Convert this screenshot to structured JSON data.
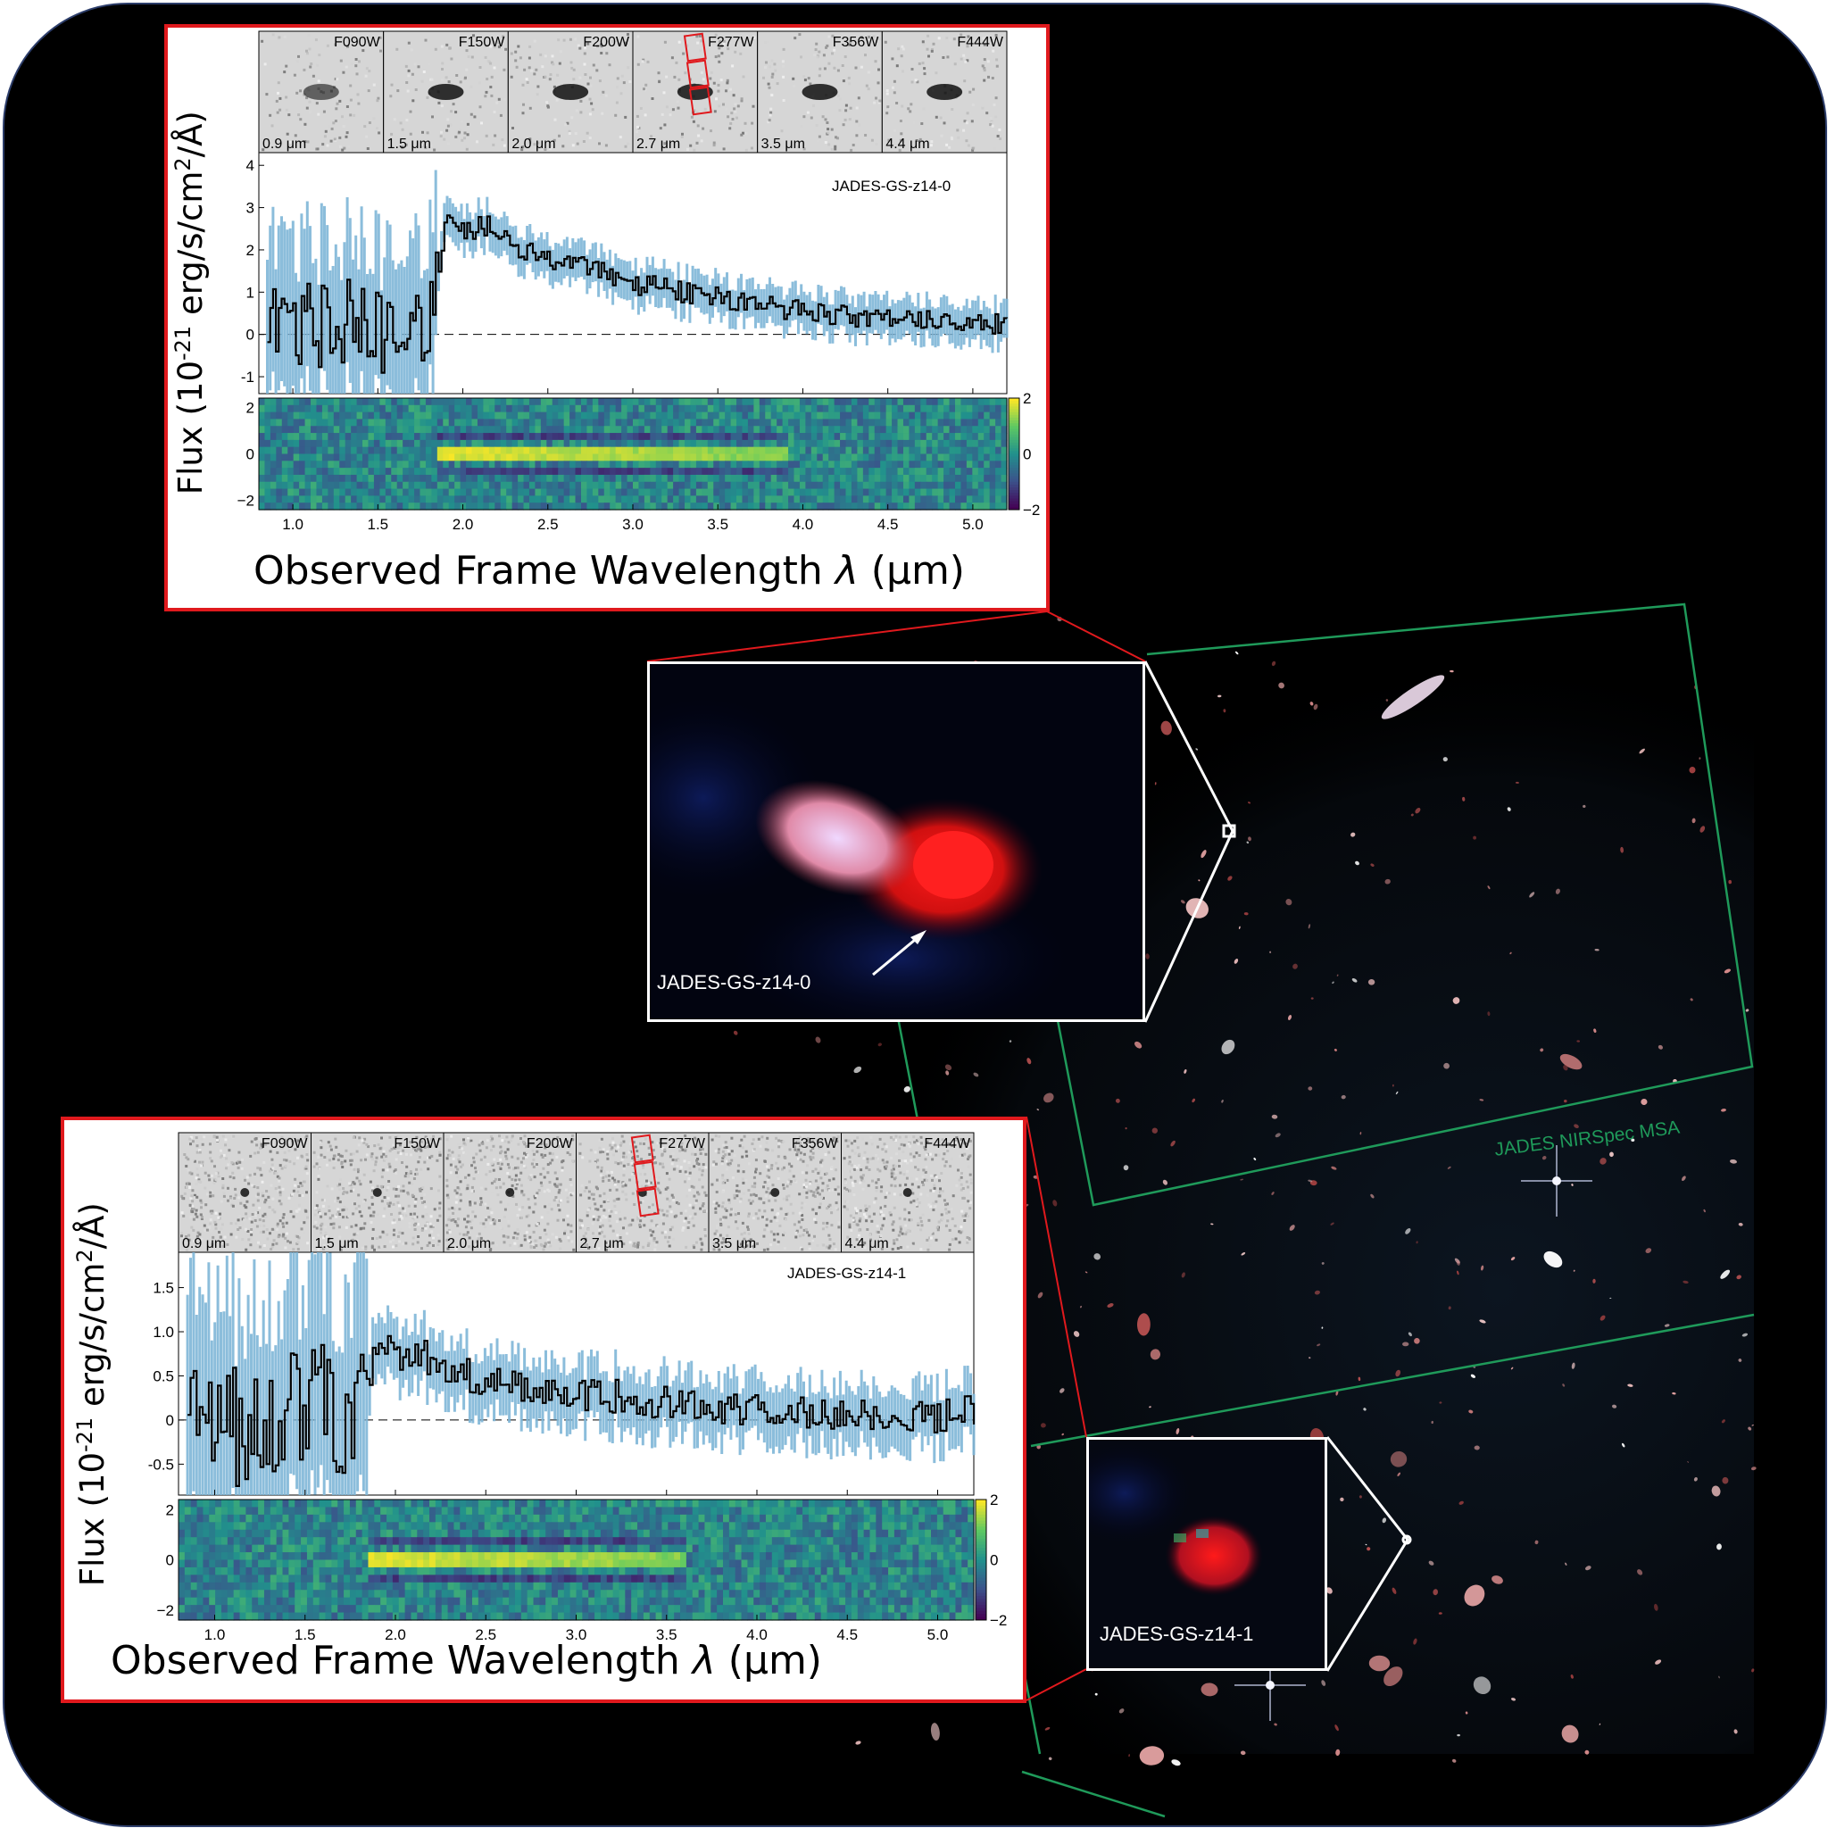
{
  "colors": {
    "frame_border": "#2d3e6b",
    "panel_border": "#e0191d",
    "flux_line": "#000000",
    "flux_error": "#7fb6d8",
    "msa_outline": "#1f9a5a",
    "background": "#000000"
  },
  "survey_label": "JADES NIRSpec MSA",
  "insets": [
    {
      "label": "JADES-GS-z14-0"
    },
    {
      "label": "JADES-GS-z14-1"
    }
  ],
  "panels": [
    {
      "object": "JADES-GS-z14-0",
      "ylabel": "Flux (10-21 erg/s/cm2/Å)",
      "ylabel_pre": "Flux (10",
      "ylabel_exp": "-21",
      "ylabel_mid": " erg/s/cm",
      "ylabel_exp2": "2",
      "ylabel_post": "/Å)",
      "xlabel": "Observed Frame Wavelength λ (μm)",
      "xlabel_pre": "Observed Frame Wavelength ",
      "xlabel_sym": "λ",
      "xlabel_post": " (μm)",
      "thumbnails": [
        {
          "filter": "F090W",
          "wavelength": "0.9 μm"
        },
        {
          "filter": "F150W",
          "wavelength": "1.5 μm"
        },
        {
          "filter": "F200W",
          "wavelength": "2.0 μm"
        },
        {
          "filter": "F277W",
          "wavelength": "2.7 μm"
        },
        {
          "filter": "F356W",
          "wavelength": "3.5 μm"
        },
        {
          "filter": "F444W",
          "wavelength": "4.4 μm"
        }
      ]
    },
    {
      "object": "JADES-GS-z14-1",
      "ylabel": "Flux (10-21 erg/s/cm2/Å)",
      "ylabel_pre": "Flux (10",
      "ylabel_exp": "-21",
      "ylabel_mid": " erg/s/cm",
      "ylabel_exp2": "2",
      "ylabel_post": "/Å)",
      "xlabel": "Observed Frame Wavelength λ (μm)",
      "xlabel_pre": "Observed Frame Wavelength ",
      "xlabel_sym": "λ",
      "xlabel_post": " (μm)",
      "thumbnails": [
        {
          "filter": "F090W",
          "wavelength": "0.9 μm"
        },
        {
          "filter": "F150W",
          "wavelength": "1.5 μm"
        },
        {
          "filter": "F200W",
          "wavelength": "2.0 μm"
        },
        {
          "filter": "F277W",
          "wavelength": "2.7 μm"
        },
        {
          "filter": "F356W",
          "wavelength": "3.5 μm"
        },
        {
          "filter": "F444W",
          "wavelength": "4.4 μm"
        }
      ]
    }
  ],
  "chart_data": [
    {
      "type": "line",
      "title": "JADES-GS-z14-0",
      "xlabel": "Observed Frame Wavelength λ (μm)",
      "ylabel": "Flux (10-21 erg/s/cm2/Å)",
      "xlim": [
        0.8,
        5.2
      ],
      "ylim": [
        -1.4,
        4.3
      ],
      "xticks": [
        "1.0",
        "1.5",
        "2.0",
        "2.5",
        "3.0",
        "3.5",
        "4.0",
        "4.5",
        "5.0"
      ],
      "yticks": [
        "-1",
        "0",
        "1",
        "2",
        "3",
        "4"
      ],
      "x": [
        0.85,
        1.0,
        1.2,
        1.4,
        1.6,
        1.75,
        1.82,
        1.9,
        2.0,
        2.15,
        2.3,
        2.5,
        2.7,
        3.0,
        3.3,
        3.6,
        4.0,
        4.5,
        5.0,
        5.2
      ],
      "series": [
        {
          "values": [
            0.0,
            0.3,
            0.1,
            0.4,
            -0.4,
            -0.1,
            0.7,
            2.7,
            2.4,
            2.6,
            2.1,
            1.8,
            1.6,
            1.2,
            1.0,
            0.8,
            0.55,
            0.35,
            0.3,
            0.2
          ]
        }
      ],
      "zero_line": "dashed",
      "spectrum_2d": {
        "type": "heatmap",
        "ylim": [
          -2.4,
          2.4
        ],
        "yticks": [
          "-2",
          "0",
          "2"
        ],
        "colorbar_ticks": [
          "2",
          "0",
          "-2"
        ],
        "trace_x_range": [
          1.85,
          3.9
        ]
      }
    },
    {
      "type": "line",
      "title": "JADES-GS-z14-1",
      "xlabel": "Observed Frame Wavelength λ (μm)",
      "ylabel": "Flux (10-21 erg/s/cm2/Å)",
      "xlim": [
        0.8,
        5.2
      ],
      "ylim": [
        -0.85,
        1.9
      ],
      "xticks": [
        "1.0",
        "1.5",
        "2.0",
        "2.5",
        "3.0",
        "3.5",
        "4.0",
        "4.5",
        "5.0"
      ],
      "yticks": [
        "-0.5",
        "0",
        "0.5",
        "1.0",
        "1.5"
      ],
      "x": [
        0.85,
        1.0,
        1.2,
        1.4,
        1.6,
        1.75,
        1.85,
        1.92,
        2.0,
        2.2,
        2.5,
        2.8,
        3.0,
        3.3,
        3.6,
        4.0,
        4.5,
        5.0,
        5.2
      ],
      "series": [
        {
          "values": [
            0.2,
            -0.2,
            0.1,
            0.05,
            0.1,
            0.0,
            0.5,
            0.9,
            0.75,
            0.7,
            0.4,
            0.35,
            0.3,
            0.25,
            0.15,
            0.12,
            0.08,
            0.05,
            0.1
          ]
        }
      ],
      "zero_line": "dashed",
      "spectrum_2d": {
        "type": "heatmap",
        "ylim": [
          -2.4,
          2.4
        ],
        "yticks": [
          "-2",
          "0",
          "2"
        ],
        "colorbar_ticks": [
          "2",
          "0",
          "-2"
        ],
        "trace_x_range": [
          1.85,
          3.6
        ]
      }
    }
  ]
}
